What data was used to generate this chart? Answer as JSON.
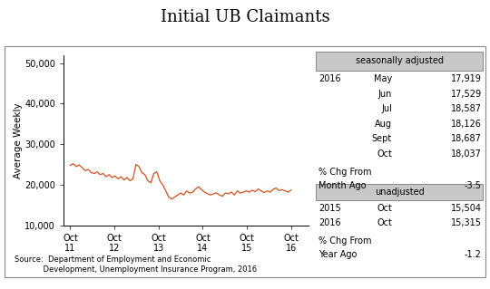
{
  "title": "Initial UB Claimants",
  "ylabel": "Average Weekly",
  "ylim": [
    10000,
    52000
  ],
  "yticks": [
    10000,
    20000,
    30000,
    40000,
    50000
  ],
  "ytick_labels": [
    "10,000",
    "20,000",
    "30,000",
    "40,000",
    "50,000"
  ],
  "xtick_labels": [
    "Oct\n11",
    "Oct\n12",
    "Oct\n13",
    "Oct\n14",
    "Oct\n15",
    "Oct\n16"
  ],
  "line_color": "#D2521E",
  "box_color": "#c8c8c8",
  "source_text": "Source:  Department of Employment and Economic\n            Development, Unemployment Insurance Program, 2016",
  "sa_label": "seasonally adjusted",
  "sa_data": [
    [
      "2016",
      "May",
      "17,919"
    ],
    [
      "",
      "Jun",
      "17,529"
    ],
    [
      "",
      "Jul",
      "18,587"
    ],
    [
      "",
      "Aug",
      "18,126"
    ],
    [
      "",
      "Sept",
      "18,687"
    ],
    [
      "",
      "Oct",
      "18,037"
    ]
  ],
  "pct_chg_month_line1": "% Chg From",
  "pct_chg_month_line2": "Month Ago",
  "pct_chg_month_val": "-3.5",
  "unadj_label": "unadjusted",
  "unadj_data": [
    [
      "2015",
      "Oct",
      "15,504"
    ],
    [
      "2016",
      "Oct",
      "15,315"
    ]
  ],
  "pct_chg_year_line1": "% Chg From",
  "pct_chg_year_line2": "Year Ago",
  "pct_chg_year_val": "-1.2",
  "y_values": [
    24800,
    25200,
    24500,
    24900,
    24200,
    23500,
    23800,
    23000,
    22800,
    23200,
    22500,
    22800,
    22000,
    22500,
    21800,
    22200,
    21500,
    22000,
    21200,
    21800,
    21000,
    21500,
    25000,
    24500,
    23000,
    22500,
    21000,
    20500,
    22800,
    23200,
    21000,
    20000,
    18500,
    17000,
    16500,
    17000,
    17500,
    18000,
    17500,
    18500,
    18000,
    18200,
    19000,
    19500,
    18800,
    18200,
    17800,
    17500,
    17800,
    18000,
    17500,
    17200,
    18000,
    17800,
    18200,
    17500,
    18500,
    18000,
    18200,
    18500,
    18200,
    18700,
    18300,
    19000,
    18500,
    18100,
    18500,
    18200,
    18900,
    19200,
    18600,
    18800,
    18500,
    18200,
    18700
  ]
}
